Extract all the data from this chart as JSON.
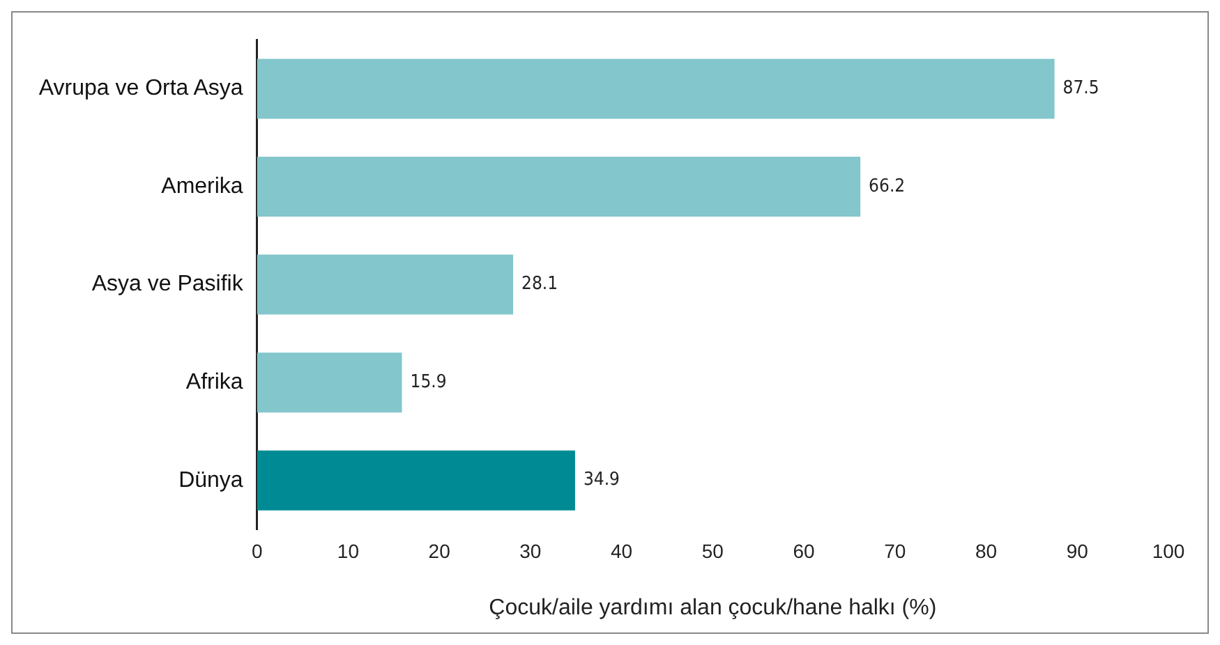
{
  "chart_data": {
    "type": "bar",
    "orientation": "horizontal",
    "xlabel": "Çocuk/aile yardımı alan çocuk/hane halkı (%)",
    "categories": [
      "Avrupa ve Orta Asya",
      "Amerika",
      "Asya ve Pasifik",
      "Afrika",
      "Dünya"
    ],
    "values": [
      87.5,
      66.2,
      28.1,
      15.9,
      34.9
    ],
    "colors": [
      "#83c6cb",
      "#83c6cb",
      "#83c6cb",
      "#83c6cb",
      "#008b94"
    ],
    "xlim": [
      0,
      100
    ],
    "xticks": [
      0,
      10,
      20,
      30,
      40,
      50,
      60,
      70,
      80,
      90,
      100
    ],
    "data_labels": true,
    "grid": false,
    "legend": false
  }
}
